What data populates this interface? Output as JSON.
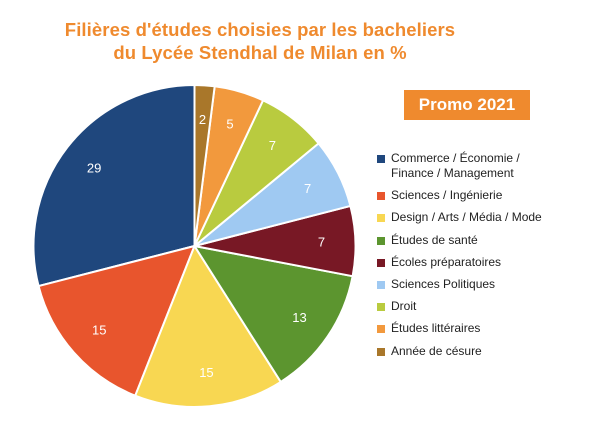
{
  "chart_data": {
    "type": "pie",
    "title_lines": [
      "Filières d'études choisies par les bacheliers",
      "du Lycée Stendhal de Milan en %"
    ],
    "badge": "Promo 2021",
    "legend_position": "right",
    "slices": [
      {
        "label": "Commerce / Économie / Finance / Management",
        "legend_lines": [
          "Commerce / Économie /",
          "Finance / Management"
        ],
        "value": 29,
        "color": "#1f477d"
      },
      {
        "label": "Sciences / Ingénierie",
        "legend_lines": [
          "Sciences / Ingénierie"
        ],
        "value": 15,
        "color": "#e8552d"
      },
      {
        "label": "Design / Arts / Média / Mode",
        "legend_lines": [
          "Design / Arts / Média / Mode"
        ],
        "value": 15,
        "color": "#f8d752"
      },
      {
        "label": "Études de santé",
        "legend_lines": [
          "Études de santé"
        ],
        "value": 13,
        "color": "#5c952f"
      },
      {
        "label": "Écoles préparatoires",
        "legend_lines": [
          "Écoles préparatoires"
        ],
        "value": 7,
        "color": "#781825"
      },
      {
        "label": "Sciences Politiques",
        "legend_lines": [
          "Sciences Politiques"
        ],
        "value": 7,
        "color": "#9fc9f2"
      },
      {
        "label": "Droit",
        "legend_lines": [
          "Droit"
        ],
        "value": 7,
        "color": "#b9cb3f"
      },
      {
        "label": "Études littéraires",
        "legend_lines": [
          "Études littéraires"
        ],
        "value": 5,
        "color": "#f2993d"
      },
      {
        "label": "Année de césure",
        "legend_lines": [
          "Année de césure"
        ],
        "value": 2,
        "color": "#a9772a"
      }
    ]
  }
}
